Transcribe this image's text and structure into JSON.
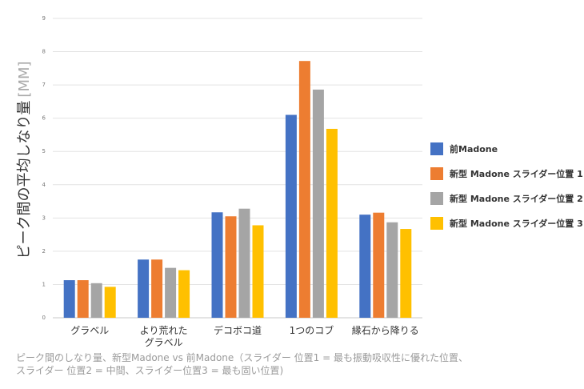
{
  "chart_data": {
    "type": "bar",
    "ylabel": "ピーク間の平均しなり量",
    "ylabel_unit": "[MM]",
    "ylim": [
      0,
      9
    ],
    "yticks": [
      "0",
      "1",
      "2",
      "3",
      "4",
      "5",
      "6",
      "7",
      "8",
      "9"
    ],
    "grid": true,
    "legend_position": "right",
    "categories": [
      [
        "グラベル"
      ],
      [
        "より荒れた",
        "グラベル"
      ],
      [
        "デコボコ道"
      ],
      [
        "1つのコブ"
      ],
      [
        "縁石から降りる"
      ]
    ],
    "series": [
      {
        "name": "前Madone",
        "color": "#4472c4",
        "values": [
          1.13,
          1.75,
          3.17,
          6.1,
          3.1
        ]
      },
      {
        "name": "新型 Madone スライダー位置 1",
        "color": "#ed7d31",
        "values": [
          1.13,
          1.75,
          3.05,
          7.72,
          3.16
        ]
      },
      {
        "name": "新型 Madone スライダー位置 2",
        "color": "#a5a5a5",
        "values": [
          1.04,
          1.5,
          3.28,
          6.86,
          2.87
        ]
      },
      {
        "name": "新型 Madone スライダー位置 3",
        "color": "#ffc000",
        "values": [
          0.93,
          1.43,
          2.78,
          5.68,
          2.67
        ]
      }
    ]
  },
  "caption": {
    "line1": "ピーク間のしなり量、新型Madone vs 前Madone（スライダー 位置1 = 最も振動吸収性に優れた位置、",
    "line2": "スライダー 位置2 = 中間、スライダー位置3 = 最も固い位置)"
  }
}
